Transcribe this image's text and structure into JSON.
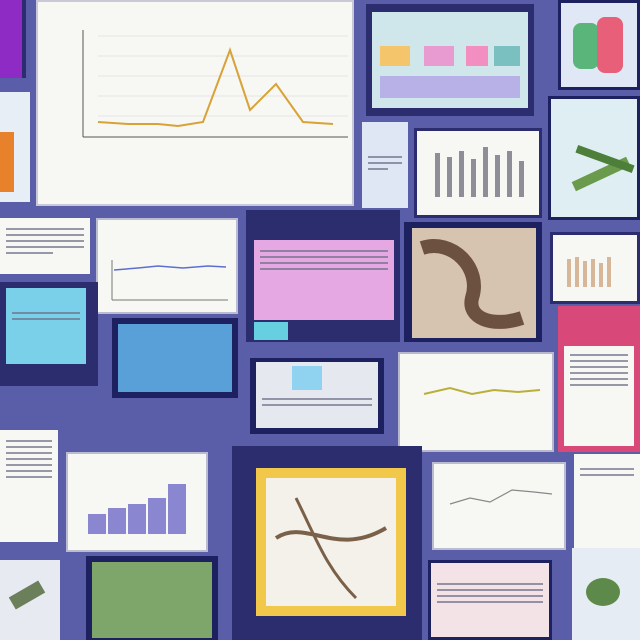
{
  "main_chart_title": "",
  "colors": {
    "background": "#5a5ea8",
    "line_orange": "#d9a236",
    "bar_purple": "#8b86d0"
  }
}
